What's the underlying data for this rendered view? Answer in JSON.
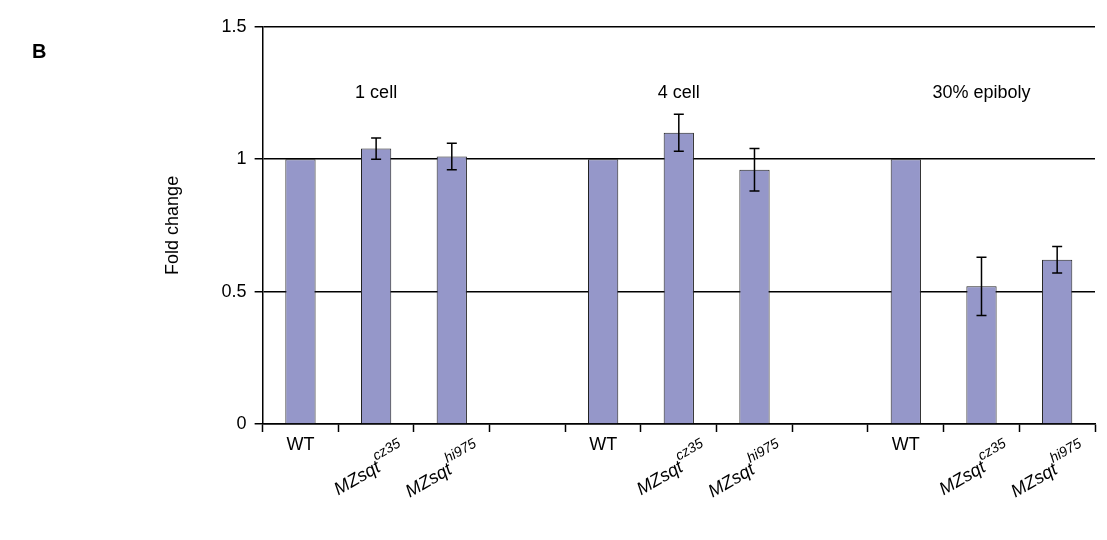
{
  "chart_data": {
    "type": "bar",
    "title": "B",
    "ylabel": "Fold change",
    "categories": [
      "WT",
      "MZsqt$^{cz35}$",
      "MZsqt$^{hi975}$",
      null,
      "WT",
      "MZsqt$^{cz35}$",
      "MZsqt$^{hi975}$",
      null,
      "WT",
      "MZsqt$^{cz35}$",
      "MZsqt$^{hi975}$"
    ],
    "values": [
      1,
      1.04,
      1.01,
      null,
      1,
      1.1,
      0.96,
      null,
      1,
      0.52,
      0.62
    ],
    "errors": [
      null,
      0.04,
      0.05,
      null,
      null,
      0.07,
      0.08,
      null,
      null,
      0.11,
      0.05
    ],
    "color": "#9597c9",
    "annotations": [
      "1 cell",
      "4 cell",
      "30% epiboly"
    ],
    "ylim": [
      0,
      1.5
    ],
    "yticks": [
      0,
      0.5,
      1,
      1.5
    ],
    "grid": "y"
  }
}
